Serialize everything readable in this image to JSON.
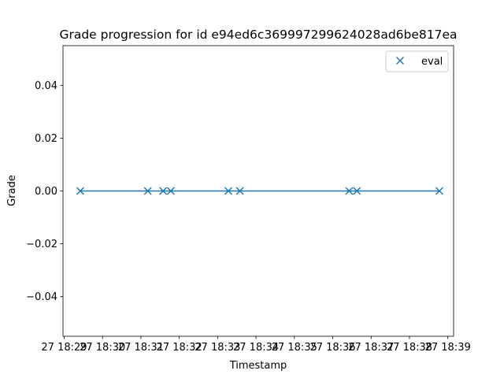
{
  "chart_data": {
    "type": "line",
    "title": "Grade progression for id e94ed6c369997299624028ad6be817ea",
    "xlabel": "Timestamp",
    "ylabel": "Grade",
    "x_ticks": [
      "27 18:29",
      "27 18:30",
      "27 18:31",
      "27 18:32",
      "27 18:33",
      "27 18:34",
      "27 18:35",
      "27 18:36",
      "27 18:37",
      "27 18:38",
      "27 18:39"
    ],
    "y_ticks": [
      "0.04",
      "0.02",
      "0.00",
      "−0.02",
      "−0.04"
    ],
    "y_tick_values": [
      0.04,
      0.02,
      0.0,
      -0.02,
      -0.04
    ],
    "xlim_minutes": [
      28.97,
      39.15
    ],
    "ylim": [
      -0.055,
      0.055
    ],
    "grid": false,
    "legend_position": "top-right",
    "series": [
      {
        "name": "eval",
        "marker": "x",
        "color": "#1f77b4",
        "x_minutes": [
          29.42,
          31.18,
          31.58,
          31.78,
          33.28,
          33.58,
          36.43,
          36.63,
          38.78
        ],
        "values": [
          0,
          0,
          0,
          0,
          0,
          0,
          0,
          0,
          0
        ]
      }
    ]
  }
}
